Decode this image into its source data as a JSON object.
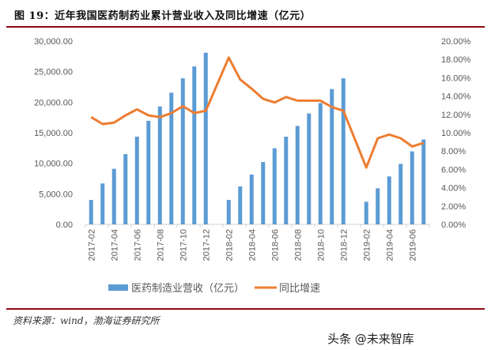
{
  "title": "图 19：近年我国医药制药业累计营业收入及同比增速（亿元）",
  "source": "资料来源：wind，渤海证券研究所",
  "watermark": "头条 @未来智库",
  "chart_data": {
    "type": "bar+line",
    "categories": [
      "2017-02",
      "2017-03",
      "2017-04",
      "2017-05",
      "2017-06",
      "2017-07",
      "2017-08",
      "2017-09",
      "2017-10",
      "2017-11",
      "2017-12",
      "2018-01",
      "2018-02",
      "2018-03",
      "2018-04",
      "2018-05",
      "2018-06",
      "2018-07",
      "2018-08",
      "2018-09",
      "2018-10",
      "2018-11",
      "2018-12",
      "2019-01",
      "2019-02",
      "2019-03",
      "2019-04",
      "2019-05",
      "2019-06",
      "2019-07"
    ],
    "tick_labels": [
      "2017-02",
      "2017-04",
      "2017-06",
      "2017-08",
      "2017-10",
      "2017-12",
      "2018-02",
      "2018-04",
      "2018-06",
      "2018-08",
      "2018-10",
      "2018-12",
      "2019-02",
      "2019-04",
      "2019-06"
    ],
    "series": [
      {
        "name": "医药制造业营收（亿元）",
        "type": "bar",
        "axis": "left",
        "color": "#5B9BD5",
        "values": [
          4000,
          6700,
          9100,
          11500,
          14350,
          16950,
          19300,
          21550,
          23900,
          25850,
          28100,
          null,
          4000,
          6200,
          8150,
          10200,
          12450,
          14350,
          16100,
          18150,
          19850,
          22150,
          23900,
          null,
          3700,
          5900,
          7850,
          9900,
          11950,
          13900
        ]
      },
      {
        "name": "同比增速",
        "type": "line",
        "axis": "right",
        "color": "#ED7D31",
        "values": [
          11.7,
          10.95,
          11.1,
          11.9,
          12.55,
          11.9,
          11.7,
          12.15,
          12.9,
          12.15,
          12.4,
          null,
          18.2,
          15.8,
          14.8,
          13.7,
          13.3,
          13.9,
          13.5,
          13.5,
          13.5,
          12.8,
          12.4,
          null,
          6.2,
          9.4,
          9.8,
          9.4,
          8.5,
          8.9
        ]
      }
    ],
    "y_left": {
      "range": [
        0,
        30000
      ],
      "ticks": [
        "0.00",
        "5,000.00",
        "10,000.00",
        "15,000.00",
        "20,000.00",
        "25,000.00",
        "30,000.00"
      ]
    },
    "y_right": {
      "range": [
        0,
        20
      ],
      "ticks": [
        "0.00%",
        "2.00%",
        "4.00%",
        "6.00%",
        "8.00%",
        "10.00%",
        "12.00%",
        "14.00%",
        "16.00%",
        "18.00%",
        "20.00%"
      ]
    },
    "grid": false,
    "legend_position": "bottom"
  }
}
